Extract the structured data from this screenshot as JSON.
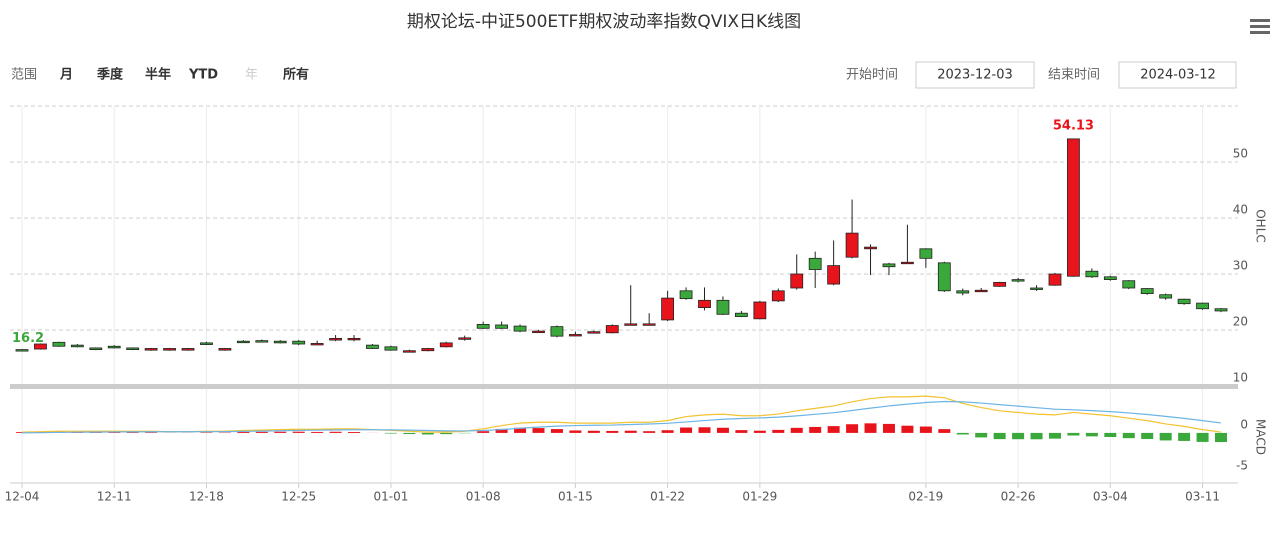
{
  "header": {
    "title": "期权论坛-中证500ETF期权波动率指数QVIX日K线图"
  },
  "controls": {
    "range_label": "范围",
    "ranges": [
      "月",
      "季度",
      "半年",
      "YTD",
      "年",
      "所有"
    ],
    "start_label": "开始时间",
    "start": "2023-12-03",
    "end_label": "结束时间",
    "end": "2024-03-12"
  },
  "chart_data": [
    {
      "type": "candlestick",
      "y_label": "OHLC",
      "categories": [
        "12-04",
        null,
        null,
        null,
        null,
        "12-11",
        null,
        null,
        null,
        null,
        "12-18",
        null,
        null,
        null,
        null,
        "12-25",
        null,
        null,
        null,
        null,
        "01-01",
        null,
        null,
        null,
        null,
        "01-08",
        null,
        null,
        null,
        null,
        "01-15",
        null,
        null,
        null,
        null,
        "01-22",
        null,
        null,
        null,
        null,
        "01-29",
        null,
        null,
        null,
        null,
        null,
        null,
        null,
        null,
        "02-19",
        null,
        null,
        null,
        null,
        "02-26",
        null,
        null,
        null,
        null,
        "03-04",
        null,
        null,
        null,
        null,
        "03-11",
        null
      ],
      "open": [
        16.5,
        16.6,
        17.8,
        17.3,
        16.8,
        17.1,
        16.8,
        16.4,
        16.4,
        16.4,
        17.7,
        16.4,
        18.0,
        18.1,
        18.0,
        18.0,
        17.6,
        18.2,
        18.3,
        17.3,
        17.0,
        16.3,
        16.3,
        17.0,
        18.4,
        21.0,
        20.9,
        20.7,
        19.8,
        20.6,
        19.1,
        19.6,
        19.5,
        21.0,
        21.0,
        21.8,
        27.0,
        24.0,
        25.3,
        23.0,
        22.0,
        25.2,
        27.5,
        32.8,
        28.2,
        33.0,
        34.5,
        31.8,
        32.0,
        34.5,
        32.0,
        27.0,
        27.0,
        27.8,
        29.0,
        27.5,
        28.0,
        29.6,
        30.5,
        29.5,
        28.8,
        27.4,
        26.3,
        25.5,
        24.8,
        23.8
      ],
      "high": [
        16.6,
        17.6,
        17.9,
        17.5,
        16.9,
        17.3,
        16.9,
        16.8,
        16.8,
        16.8,
        17.9,
        16.8,
        18.2,
        18.3,
        18.2,
        18.2,
        18.1,
        19.1,
        19.1,
        17.5,
        17.2,
        16.5,
        16.8,
        17.9,
        19.0,
        21.5,
        21.5,
        21.0,
        20.0,
        20.8,
        19.7,
        19.9,
        21.0,
        28.0,
        23.0,
        27.0,
        27.6,
        27.6,
        26.0,
        23.4,
        25.2,
        27.4,
        33.5,
        34.0,
        36.0,
        43.3,
        35.3,
        32.0,
        38.8,
        34.6,
        32.2,
        27.4,
        27.5,
        28.6,
        29.3,
        28.0,
        30.2,
        54.13,
        31.0,
        29.7,
        28.9,
        27.5,
        26.5,
        25.6,
        24.9,
        23.9
      ],
      "low": [
        16.2,
        16.5,
        17.0,
        16.9,
        16.4,
        16.7,
        16.4,
        16.3,
        16.3,
        16.3,
        17.3,
        16.3,
        17.8,
        17.8,
        17.6,
        17.3,
        17.5,
        18.0,
        18.0,
        16.6,
        16.3,
        16.2,
        16.2,
        16.9,
        18.1,
        20.2,
        20.2,
        19.6,
        19.5,
        18.7,
        18.9,
        19.4,
        19.4,
        20.9,
        20.8,
        21.6,
        25.4,
        23.5,
        22.7,
        22.3,
        21.9,
        25.0,
        27.2,
        27.5,
        28.0,
        32.8,
        29.8,
        29.8,
        31.9,
        31.1,
        26.8,
        26.2,
        26.8,
        27.7,
        28.5,
        27.0,
        27.9,
        29.5,
        29.3,
        28.8,
        27.3,
        26.3,
        25.4,
        24.5,
        23.6,
        23.2
      ],
      "close": [
        16.3,
        17.5,
        17.1,
        17.0,
        16.5,
        16.8,
        16.5,
        16.7,
        16.7,
        16.7,
        17.4,
        16.7,
        17.9,
        18.0,
        17.7,
        17.5,
        17.6,
        18.5,
        18.5,
        16.7,
        16.4,
        16.3,
        16.7,
        17.7,
        18.6,
        20.3,
        20.3,
        19.8,
        19.8,
        18.9,
        19.2,
        19.7,
        20.8,
        21.1,
        21.1,
        25.7,
        25.6,
        25.3,
        22.8,
        22.4,
        25.0,
        27.0,
        30.0,
        30.8,
        31.5,
        37.3,
        34.8,
        31.3,
        32.1,
        32.8,
        27.0,
        26.6,
        27.1,
        28.5,
        28.8,
        27.3,
        30.0,
        54.13,
        29.5,
        29.0,
        27.5,
        26.5,
        25.7,
        24.7,
        23.8,
        23.4
      ],
      "up_color": "#e8141c",
      "down_color": "#3aa83a",
      "ylim": [
        10,
        60
      ],
      "yticks": [
        10,
        20,
        30,
        40,
        50
      ],
      "grid": true
    },
    {
      "type": "macd",
      "y_label": "MACD",
      "series": [
        {
          "color": "#f2c230",
          "values": [
            0.1,
            0.15,
            0.2,
            0.2,
            0.2,
            0.2,
            0.2,
            0.2,
            0.15,
            0.15,
            0.2,
            0.2,
            0.3,
            0.35,
            0.4,
            0.45,
            0.45,
            0.5,
            0.5,
            0.4,
            0.3,
            0.2,
            0.1,
            0.1,
            0.2,
            0.5,
            0.9,
            1.2,
            1.3,
            1.3,
            1.2,
            1.2,
            1.2,
            1.3,
            1.3,
            1.5,
            2.0,
            2.2,
            2.3,
            2.1,
            2.1,
            2.3,
            2.7,
            3.0,
            3.3,
            3.8,
            4.2,
            4.4,
            4.4,
            4.5,
            4.3,
            3.6,
            3.1,
            2.7,
            2.5,
            2.3,
            2.2,
            2.5,
            2.3,
            2.1,
            1.8,
            1.5,
            1.1,
            0.8,
            0.4,
            0.1
          ]
        },
        {
          "color": "#6cb4e4",
          "values": [
            0,
            0.03,
            0.06,
            0.09,
            0.1,
            0.12,
            0.13,
            0.14,
            0.14,
            0.14,
            0.15,
            0.16,
            0.19,
            0.22,
            0.26,
            0.3,
            0.33,
            0.36,
            0.39,
            0.39,
            0.37,
            0.34,
            0.29,
            0.25,
            0.24,
            0.29,
            0.41,
            0.57,
            0.71,
            0.83,
            0.9,
            0.94,
            0.96,
            1.03,
            1.09,
            1.17,
            1.34,
            1.51,
            1.67,
            1.76,
            1.83,
            1.93,
            2.08,
            2.27,
            2.47,
            2.74,
            3.03,
            3.3,
            3.52,
            3.72,
            3.84,
            3.79,
            3.65,
            3.46,
            3.27,
            3.08,
            2.9,
            2.82,
            2.72,
            2.6,
            2.44,
            2.25,
            2.02,
            1.78,
            1.5,
            1.22
          ]
        }
      ],
      "histogram": {
        "values": [
          0.1,
          0.12,
          0.14,
          0.11,
          0.1,
          0.08,
          0.07,
          0.06,
          0.01,
          0.01,
          0.05,
          0.04,
          0.11,
          0.13,
          0.14,
          0.15,
          0.12,
          0.14,
          0.11,
          0.01,
          -0.07,
          -0.14,
          -0.19,
          -0.15,
          -0.04,
          0.21,
          0.49,
          0.63,
          0.59,
          0.47,
          0.3,
          0.26,
          0.24,
          0.27,
          0.21,
          0.33,
          0.66,
          0.69,
          0.63,
          0.34,
          0.27,
          0.37,
          0.62,
          0.73,
          0.83,
          1.06,
          1.17,
          1.1,
          0.88,
          0.78,
          0.46,
          -0.19,
          -0.55,
          -0.76,
          -0.77,
          -0.78,
          -0.7,
          -0.32,
          -0.42,
          -0.5,
          -0.64,
          -0.75,
          -0.92,
          -0.98,
          -1.1,
          -1.12
        ],
        "up_color": "#e8141c",
        "down_color": "#3aa83a"
      },
      "ylim": [
        -6,
        5
      ],
      "yticks": [
        -5,
        0
      ],
      "grid": false
    }
  ]
}
